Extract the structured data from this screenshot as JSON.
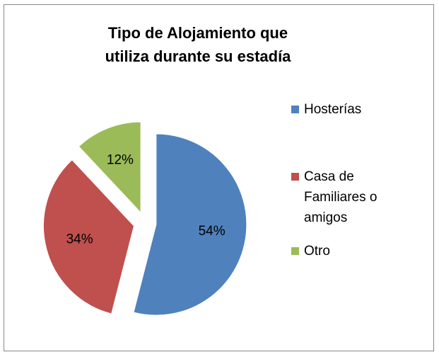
{
  "chart_data": {
    "type": "pie",
    "title": "Tipo de Alojamiento que utiliza durante su estadía",
    "categories": [
      "Hosterías",
      "Casa de Familiares o amigos",
      "Otro"
    ],
    "values": [
      54,
      34,
      12
    ],
    "value_labels": [
      "54%",
      "34%",
      "12%"
    ],
    "colors": [
      "#4f81bd",
      "#c0504d",
      "#9bbb59"
    ],
    "legend": "right"
  }
}
